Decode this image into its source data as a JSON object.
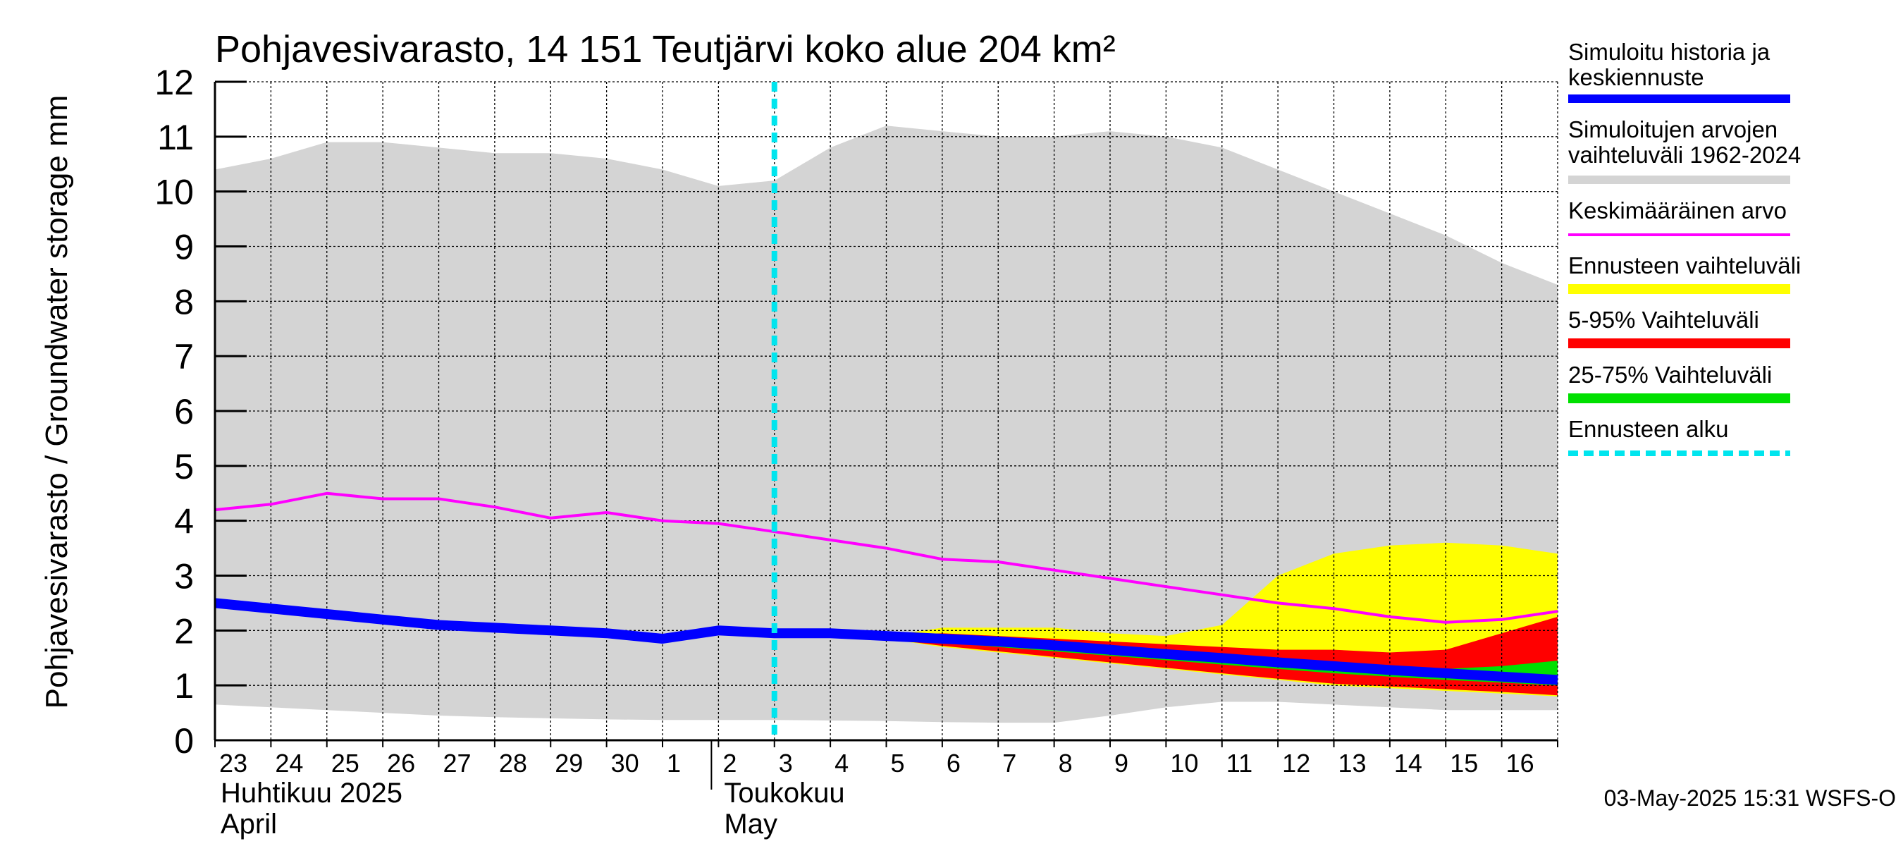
{
  "chart_data": {
    "type": "area",
    "title": "Pohjavesivarasto, 14 151 Teutjärvi koko alue 204 km²",
    "ylabel": "Pohjavesivarasto / Groundwater storage   mm",
    "ylim": [
      0,
      12
    ],
    "yticks": [
      "0",
      "1",
      "2",
      "3",
      "4",
      "5",
      "6",
      "7",
      "8",
      "9",
      "10",
      "11",
      "12"
    ],
    "xlim": [
      0,
      24
    ],
    "grid": true,
    "legend_position": "right",
    "x_tick_labels": [
      "23",
      "24",
      "25",
      "26",
      "27",
      "28",
      "29",
      "30",
      "1",
      "2",
      "3",
      "4",
      "5",
      "6",
      "7",
      "8",
      "9",
      "10",
      "11",
      "12",
      "13",
      "14",
      "15",
      "16"
    ],
    "month_labels": [
      {
        "line1": "Huhtikuu  2025",
        "line2": "April",
        "x": 0
      },
      {
        "line1": "Toukokuu",
        "line2": "May",
        "x": 9
      }
    ],
    "forecast_start_x": 10,
    "footer": "03-May-2025 15:31 WSFS-O",
    "legend": [
      {
        "label": "Simuloitu historia ja keskiennuste",
        "color": "#0000ff"
      },
      {
        "label": "Simuloitujen arvojen vaihteluväli 1962-2024",
        "color": "#d4d4d4"
      },
      {
        "label": "Keskimääräinen arvo",
        "color": "#ff00ff"
      },
      {
        "label": "Ennusteen vaihteluväli",
        "color": "#ffff00"
      },
      {
        "label": "5-95% Vaihteluväli",
        "color": "#ff0000"
      },
      {
        "label": "25-75% Vaihteluväli",
        "color": "#00e000"
      },
      {
        "label": "Ennusteen alku",
        "color": "#00e5ee"
      }
    ],
    "series": [
      {
        "name": "Simuloitujen arvojen vaihteluväli 1962-2024 (max)",
        "color": "#d4d4d4",
        "x": [
          0,
          1,
          2,
          3,
          4,
          5,
          6,
          7,
          8,
          9,
          10,
          11,
          12,
          13,
          14,
          15,
          16,
          17,
          18,
          19,
          20,
          21,
          22,
          23,
          24
        ],
        "y": [
          10.4,
          10.6,
          10.9,
          10.9,
          10.8,
          10.7,
          10.7,
          10.6,
          10.4,
          10.1,
          10.2,
          10.8,
          11.2,
          11.1,
          11.0,
          11.0,
          11.1,
          11.0,
          10.8,
          10.4,
          10.0,
          9.6,
          9.2,
          8.7,
          8.3
        ]
      },
      {
        "name": "Simuloitujen arvojen vaihteluväli 1962-2024 (min)",
        "color": "#d4d4d4",
        "x": [
          0,
          1,
          2,
          3,
          4,
          5,
          6,
          7,
          8,
          9,
          10,
          11,
          12,
          13,
          14,
          15,
          16,
          17,
          18,
          19,
          20,
          21,
          22,
          23,
          24
        ],
        "y": [
          0.65,
          0.6,
          0.55,
          0.5,
          0.45,
          0.42,
          0.4,
          0.38,
          0.37,
          0.37,
          0.37,
          0.36,
          0.35,
          0.33,
          0.32,
          0.32,
          0.45,
          0.6,
          0.7,
          0.7,
          0.65,
          0.6,
          0.55,
          0.55,
          0.55
        ]
      },
      {
        "name": "Ennusteen vaihteluväli (max)",
        "color": "#ffff00",
        "x": [
          12,
          13,
          14,
          15,
          16,
          17,
          18,
          19,
          20,
          21,
          22,
          23,
          24
        ],
        "y": [
          1.9,
          2.05,
          2.05,
          2.05,
          1.95,
          1.9,
          2.1,
          3.0,
          3.4,
          3.55,
          3.6,
          3.55,
          3.4
        ]
      },
      {
        "name": "Ennusteen vaihteluväli (min)",
        "color": "#ffff00",
        "x": [
          12,
          13,
          14,
          15,
          16,
          17,
          18,
          19,
          20,
          21,
          22,
          23,
          24
        ],
        "y": [
          1.85,
          1.7,
          1.6,
          1.5,
          1.4,
          1.3,
          1.2,
          1.1,
          1.0,
          0.95,
          0.9,
          0.85,
          0.8
        ]
      },
      {
        "name": "5-95% Vaihteluväli (max)",
        "color": "#ff0000",
        "x": [
          12,
          13,
          14,
          15,
          16,
          17,
          18,
          19,
          20,
          21,
          22,
          23,
          24
        ],
        "y": [
          1.9,
          1.95,
          1.9,
          1.85,
          1.8,
          1.75,
          1.7,
          1.65,
          1.65,
          1.6,
          1.65,
          1.95,
          2.25
        ]
      },
      {
        "name": "5-95% Vaihteluväli (min)",
        "color": "#ff0000",
        "x": [
          12,
          13,
          14,
          15,
          16,
          17,
          18,
          19,
          20,
          21,
          22,
          23,
          24
        ],
        "y": [
          1.85,
          1.72,
          1.62,
          1.52,
          1.42,
          1.32,
          1.22,
          1.12,
          1.03,
          0.98,
          0.93,
          0.88,
          0.82
        ]
      },
      {
        "name": "25-75% Vaihteluväli (max)",
        "color": "#00e000",
        "x": [
          12,
          13,
          14,
          15,
          16,
          17,
          18,
          19,
          20,
          21,
          22,
          23,
          24
        ],
        "y": [
          1.88,
          1.85,
          1.78,
          1.7,
          1.62,
          1.55,
          1.48,
          1.42,
          1.37,
          1.32,
          1.3,
          1.35,
          1.45
        ]
      },
      {
        "name": "25-75% Vaihteluväli (min)",
        "color": "#00e000",
        "x": [
          12,
          13,
          14,
          15,
          16,
          17,
          18,
          19,
          20,
          21,
          22,
          23,
          24
        ],
        "y": [
          1.86,
          1.78,
          1.7,
          1.62,
          1.54,
          1.46,
          1.38,
          1.3,
          1.22,
          1.16,
          1.1,
          1.05,
          1.0
        ]
      },
      {
        "name": "Keskimääräinen arvo",
        "color": "#ff00ff",
        "x": [
          0,
          1,
          2,
          3,
          4,
          5,
          6,
          7,
          8,
          9,
          10,
          11,
          12,
          13,
          14,
          15,
          16,
          17,
          18,
          19,
          20,
          21,
          22,
          23,
          24
        ],
        "y": [
          4.2,
          4.3,
          4.5,
          4.4,
          4.4,
          4.25,
          4.05,
          4.15,
          4.0,
          3.95,
          3.8,
          3.65,
          3.5,
          3.3,
          3.25,
          3.1,
          2.95,
          2.8,
          2.65,
          2.5,
          2.4,
          2.25,
          2.15,
          2.2,
          2.35
        ]
      },
      {
        "name": "Simuloitu historia ja keskiennuste",
        "color": "#0000ff",
        "x": [
          0,
          1,
          2,
          3,
          4,
          5,
          6,
          7,
          8,
          9,
          10,
          11,
          12,
          13,
          14,
          15,
          16,
          17,
          18,
          19,
          20,
          21,
          22,
          23,
          24
        ],
        "y": [
          2.5,
          2.4,
          2.3,
          2.2,
          2.1,
          2.05,
          2.0,
          1.95,
          1.85,
          2.0,
          1.95,
          1.95,
          1.9,
          1.85,
          1.8,
          1.73,
          1.65,
          1.57,
          1.5,
          1.42,
          1.35,
          1.28,
          1.22,
          1.16,
          1.1
        ]
      }
    ]
  }
}
